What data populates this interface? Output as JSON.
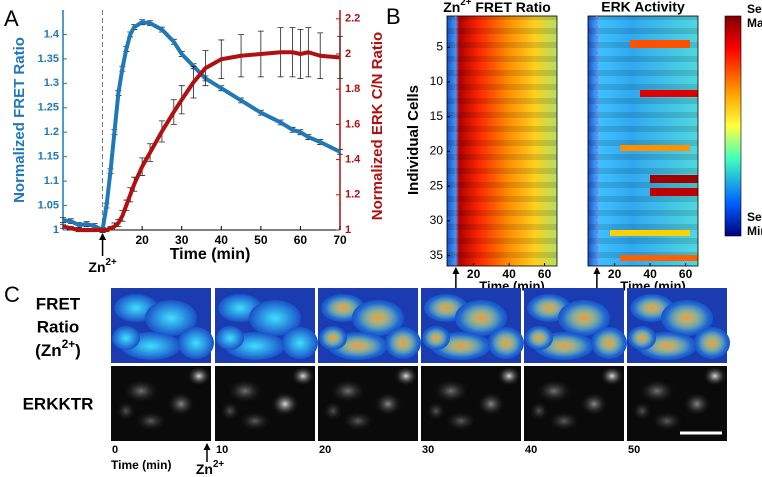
{
  "chart_data": [
    {
      "type": "line",
      "panel": "A",
      "xlabel": "Time (min)",
      "ylabel": "Normalized FRET Ratio",
      "y2label": "Normalized ERK C/N Ratio",
      "x": [
        0,
        2,
        4,
        6,
        8,
        10,
        11,
        12,
        13,
        14,
        15,
        16,
        17,
        18,
        20,
        22,
        25,
        28,
        30,
        33,
        36,
        40,
        45,
        50,
        55,
        58,
        60,
        62,
        65,
        70
      ],
      "xlim": [
        0,
        70
      ],
      "xticks": [
        20,
        30,
        40,
        50,
        60,
        70
      ],
      "ylim": [
        1,
        1.45
      ],
      "yticks": [
        1,
        1.05,
        1.1,
        1.15,
        1.2,
        1.25,
        1.3,
        1.35,
        1.4
      ],
      "y2lim": [
        1,
        2.25
      ],
      "y2ticks": [
        1,
        1.2,
        1.4,
        1.6,
        1.8,
        2,
        2.2
      ],
      "annotation": {
        "x": 10,
        "base": "Zn",
        "sup": "2+"
      },
      "series": [
        {
          "color": "#1f78b8",
          "values": [
            1.02,
            1.018,
            1.01,
            1.012,
            1.008,
            1.0,
            1.05,
            1.12,
            1.2,
            1.28,
            1.33,
            1.37,
            1.4,
            1.415,
            1.425,
            1.423,
            1.41,
            1.385,
            1.36,
            1.335,
            1.31,
            1.29,
            1.265,
            1.24,
            1.22,
            1.205,
            1.2,
            1.19,
            1.18,
            1.16
          ],
          "errors": [
            0.005,
            0.005,
            0.005,
            0.005,
            0.005,
            0.005,
            0.005,
            0.005,
            0.005,
            0.005,
            0.005,
            0.005,
            0.005,
            0.005,
            0.005,
            0.005,
            0.005,
            0.005,
            0.005,
            0.005,
            0.005,
            0.005,
            0.005,
            0.005,
            0.005,
            0.005,
            0.005,
            0.005,
            0.005,
            0.005
          ]
        },
        {
          "color": "#b01010",
          "axis": "y2",
          "values": [
            1.02,
            1.01,
            1.0,
            1.0,
            1.0,
            1.0,
            1.0,
            1.01,
            1.02,
            1.04,
            1.08,
            1.14,
            1.2,
            1.26,
            1.36,
            1.44,
            1.56,
            1.67,
            1.74,
            1.84,
            1.92,
            1.97,
            1.99,
            2.0,
            2.01,
            2.01,
            2.0,
            2.01,
            1.99,
            1.98
          ],
          "errors": [
            0.01,
            0.01,
            0.01,
            0.01,
            0.01,
            0.01,
            0.01,
            0.01,
            0.02,
            0.02,
            0.03,
            0.03,
            0.04,
            0.04,
            0.05,
            0.05,
            0.06,
            0.07,
            0.08,
            0.09,
            0.1,
            0.11,
            0.12,
            0.13,
            0.14,
            0.14,
            0.14,
            0.14,
            0.13,
            0.12
          ]
        }
      ]
    },
    {
      "type": "heatmap",
      "panel": "B",
      "title": {
        "base": "Zn",
        "sup": "2+",
        "tail": " FRET Ratio"
      },
      "ylabel": "Individual Cells",
      "xlabel": "Time (min)",
      "xlim": [
        5,
        67
      ],
      "xticks": [
        20,
        40,
        60
      ],
      "ylim": [
        0.5,
        36.5
      ],
      "yticks": [
        5,
        10,
        15,
        20,
        25,
        30,
        35
      ],
      "annotation": {
        "x": 10,
        "base": "Zn",
        "sup": "2+"
      }
    },
    {
      "type": "heatmap",
      "title": "ERK Activity",
      "xlabel": "Time (min)",
      "xlim": [
        5,
        67
      ],
      "xticks": [
        20,
        40,
        60
      ],
      "ylim": [
        0.5,
        36.5
      ],
      "annotation": {
        "x": 10,
        "base": "Zn",
        "sup": "2+"
      },
      "colorbar": {
        "max": [
          "Sensor",
          "Max"
        ],
        "min": [
          "Sensor",
          "Min"
        ]
      }
    }
  ],
  "panel_c": {
    "label": "C",
    "row_fret": [
      "FRET",
      "Ratio"
    ],
    "row_fret_last": {
      "base": "(Zn",
      "sup": "2+",
      "tail": ")"
    },
    "row_erk": "ERKKTR",
    "times": [
      "0",
      "10",
      "20",
      "30",
      "40",
      "50"
    ],
    "xlabel": "Time (min)",
    "annotation": {
      "base": "Zn",
      "sup": "2+"
    }
  }
}
